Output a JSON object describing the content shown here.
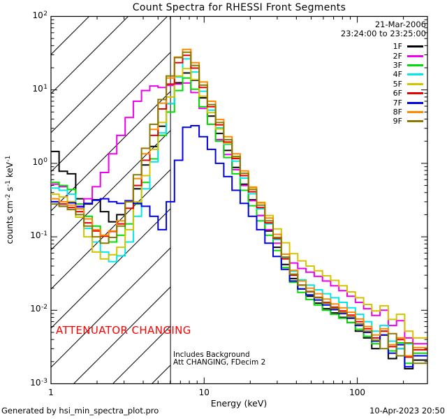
{
  "header": {
    "title": "Count Spectra for RHESSI Front Segments"
  },
  "info": {
    "date": "21-Mar-2006",
    "time_range": "23:24:00 to 23:25:00"
  },
  "legend": {
    "position": "right-top",
    "items": [
      {
        "label": "1F",
        "color": "#000000"
      },
      {
        "label": "2F",
        "color": "#ee00ee"
      },
      {
        "label": "3F",
        "color": "#00dd00"
      },
      {
        "label": "4F",
        "color": "#00e8e8"
      },
      {
        "label": "5F",
        "color": "#d4c400"
      },
      {
        "label": "6F",
        "color": "#e60000"
      },
      {
        "label": "7F",
        "color": "#0000e6"
      },
      {
        "label": "8F",
        "color": "#ff8800"
      },
      {
        "label": "9F",
        "color": "#8a7a00"
      }
    ]
  },
  "annotations": {
    "attenuator": "ATTENUATOR CHANGING",
    "attenuator_color": "#ff0000",
    "includes_background": "Includes Background",
    "att_mode": "Att CHANGING, FDecim 2"
  },
  "axes": {
    "xlabel": "Energy (keV)",
    "ylabel_segments": [
      {
        "t": "counts cm"
      },
      {
        "t": "-2",
        "sup": true
      },
      {
        "t": " s"
      },
      {
        "t": "-1",
        "sup": true
      },
      {
        "t": " keV"
      },
      {
        "t": "-1",
        "sup": true
      }
    ]
  },
  "footer": {
    "left": "Generated by hsi_min_spectra_plot.pro",
    "right": "10-Apr-2023 20:50"
  },
  "chart_data": {
    "type": "line",
    "style": "log-log histogram-mode step spectra",
    "title": "Count Spectra for RHESSI Front Segments",
    "xlabel": "Energy (keV)",
    "ylabel": "counts cm^-2 s^-1 keV^-1",
    "xscale": "log",
    "yscale": "log",
    "xlim": [
      1,
      287
    ],
    "ylim": [
      0.001,
      100
    ],
    "grid": false,
    "legend_position": "upper right",
    "x_major_ticks": [
      1,
      10,
      100
    ],
    "x_tick_labels": [
      "1",
      "10",
      "100"
    ],
    "y_major_ticks": [
      0.001,
      0.01,
      0.1,
      1,
      10,
      100
    ],
    "y_tick_exponents": [
      "2",
      "1",
      "0",
      "-1",
      "-2",
      "-3"
    ],
    "vline_x_keV": 6.03,
    "hatch_region": {
      "x_range_keV": [
        1,
        6.03
      ],
      "pattern": "45deg diagonal lines",
      "meaning": "attenuator changing interval"
    },
    "energy_bin_edges_keV": [
      1.0,
      1.13,
      1.28,
      1.45,
      1.64,
      1.86,
      2.1,
      2.38,
      2.69,
      3.05,
      3.45,
      3.9,
      4.42,
      5.0,
      5.66,
      6.4,
      7.24,
      8.19,
      9.27,
      10.49,
      11.87,
      13.43,
      15.2,
      17.2,
      19.46,
      22.02,
      24.92,
      28.2,
      31.91,
      36.11,
      40.86,
      46.24,
      52.32,
      59.21,
      67.0,
      75.82,
      85.8,
      97.09,
      109.9,
      124.3,
      140.7,
      159.2,
      180.2,
      203.9,
      230.7,
      285.0
    ],
    "series": [
      {
        "name": "1F",
        "color": "#000000",
        "values": [
          1.45,
          0.78,
          0.72,
          0.33,
          0.28,
          0.32,
          0.22,
          0.16,
          0.2,
          0.3,
          0.45,
          0.95,
          1.7,
          3.2,
          6.5,
          12.5,
          17.0,
          13.5,
          7.8,
          4.4,
          2.55,
          1.5,
          0.88,
          0.52,
          0.32,
          0.195,
          0.12,
          0.072,
          0.042,
          0.027,
          0.0195,
          0.0155,
          0.0125,
          0.0105,
          0.0092,
          0.008,
          0.0068,
          0.0052,
          0.0042,
          0.003,
          0.0046,
          0.0022,
          0.003,
          0.0016,
          0.0021
        ]
      },
      {
        "name": "2F",
        "color": "#ee00ee",
        "values": [
          0.52,
          0.48,
          0.3,
          0.26,
          0.33,
          0.48,
          0.75,
          1.35,
          2.4,
          4.2,
          7.0,
          9.8,
          11.3,
          10.8,
          11.5,
          12.0,
          12.4,
          9.2,
          5.6,
          3.4,
          2.1,
          1.32,
          0.82,
          0.5,
          0.31,
          0.195,
          0.125,
          0.082,
          0.058,
          0.044,
          0.037,
          0.033,
          0.029,
          0.025,
          0.0215,
          0.0185,
          0.0155,
          0.0128,
          0.0105,
          0.0085,
          0.01,
          0.0062,
          0.0072,
          0.0042,
          0.0035
        ]
      },
      {
        "name": "3F",
        "color": "#00dd00",
        "values": [
          0.55,
          0.5,
          0.44,
          0.28,
          0.19,
          0.14,
          0.105,
          0.085,
          0.105,
          0.15,
          0.28,
          0.55,
          1.15,
          2.4,
          5.0,
          9.8,
          14.5,
          10.2,
          5.9,
          3.4,
          2.0,
          1.2,
          0.72,
          0.43,
          0.265,
          0.165,
          0.105,
          0.065,
          0.038,
          0.024,
          0.0175,
          0.014,
          0.0118,
          0.01,
          0.0088,
          0.0078,
          0.0068,
          0.0055,
          0.0044,
          0.0035,
          0.0052,
          0.0028,
          0.0036,
          0.0019,
          0.0026
        ]
      },
      {
        "name": "4F",
        "color": "#00e8e8",
        "values": [
          0.46,
          0.43,
          0.38,
          0.24,
          0.13,
          0.085,
          0.062,
          0.046,
          0.055,
          0.085,
          0.19,
          0.45,
          1.05,
          2.6,
          6.5,
          15.0,
          26.5,
          17.5,
          9.6,
          5.3,
          3.05,
          1.8,
          1.07,
          0.63,
          0.385,
          0.24,
          0.15,
          0.092,
          0.052,
          0.034,
          0.026,
          0.022,
          0.019,
          0.0168,
          0.0148,
          0.0128,
          0.0108,
          0.0088,
          0.007,
          0.0052,
          0.0062,
          0.0038,
          0.003,
          0.0035,
          0.0024
        ]
      },
      {
        "name": "5F",
        "color": "#d4c400",
        "values": [
          0.38,
          0.35,
          0.3,
          0.185,
          0.1,
          0.062,
          0.05,
          0.057,
          0.072,
          0.125,
          0.3,
          0.68,
          1.55,
          3.6,
          8.0,
          15.5,
          19.5,
          13.8,
          8.2,
          4.9,
          2.95,
          1.85,
          1.18,
          0.73,
          0.465,
          0.295,
          0.195,
          0.128,
          0.083,
          0.059,
          0.047,
          0.04,
          0.0345,
          0.0295,
          0.0255,
          0.0215,
          0.0178,
          0.0148,
          0.012,
          0.0098,
          0.0115,
          0.0075,
          0.0088,
          0.0052,
          0.0042
        ]
      },
      {
        "name": "6F",
        "color": "#e60000",
        "values": [
          0.3,
          0.28,
          0.25,
          0.22,
          0.155,
          0.12,
          0.102,
          0.118,
          0.15,
          0.245,
          0.5,
          1.1,
          2.4,
          5.5,
          12.0,
          23.5,
          29.5,
          19.8,
          10.8,
          5.9,
          3.35,
          1.95,
          1.16,
          0.68,
          0.41,
          0.25,
          0.155,
          0.095,
          0.05,
          0.03,
          0.022,
          0.018,
          0.015,
          0.0128,
          0.011,
          0.0098,
          0.0086,
          0.007,
          0.0056,
          0.0042,
          0.0052,
          0.0032,
          0.004,
          0.0023,
          0.0029
        ]
      },
      {
        "name": "7F",
        "color": "#0000e6",
        "values": [
          0.3,
          0.26,
          0.29,
          0.255,
          0.285,
          0.315,
          0.33,
          0.3,
          0.285,
          0.31,
          0.285,
          0.26,
          0.19,
          0.125,
          0.3,
          1.1,
          3.1,
          3.25,
          2.3,
          1.55,
          1.0,
          0.66,
          0.43,
          0.285,
          0.19,
          0.125,
          0.082,
          0.054,
          0.036,
          0.025,
          0.0195,
          0.0162,
          0.0138,
          0.0118,
          0.0102,
          0.009,
          0.0078,
          0.0062,
          0.005,
          0.0038,
          0.0046,
          0.0026,
          0.0034,
          0.0017,
          0.0024
        ]
      },
      {
        "name": "8F",
        "color": "#ff8800",
        "values": [
          0.33,
          0.3,
          0.27,
          0.24,
          0.175,
          0.125,
          0.105,
          0.12,
          0.165,
          0.3,
          0.62,
          1.35,
          2.9,
          6.6,
          14.5,
          28.0,
          35.5,
          23.5,
          12.8,
          7.0,
          3.95,
          2.3,
          1.35,
          0.79,
          0.475,
          0.29,
          0.18,
          0.108,
          0.058,
          0.035,
          0.025,
          0.02,
          0.0168,
          0.0142,
          0.0122,
          0.0108,
          0.0094,
          0.0076,
          0.006,
          0.0046,
          0.0056,
          0.0034,
          0.0042,
          0.0024,
          0.0031
        ]
      },
      {
        "name": "9F",
        "color": "#8a7a00",
        "values": [
          0.28,
          0.26,
          0.235,
          0.2,
          0.14,
          0.1,
          0.082,
          0.098,
          0.14,
          0.3,
          0.7,
          1.6,
          3.4,
          7.4,
          15.5,
          27.5,
          32.5,
          21.5,
          11.6,
          6.3,
          3.6,
          2.1,
          1.24,
          0.73,
          0.44,
          0.27,
          0.165,
          0.098,
          0.053,
          0.031,
          0.022,
          0.0178,
          0.0148,
          0.0125,
          0.0106,
          0.0093,
          0.0081,
          0.0065,
          0.0052,
          0.0039,
          0.003,
          0.0048,
          0.0024,
          0.0036,
          0.0019
        ]
      }
    ]
  }
}
